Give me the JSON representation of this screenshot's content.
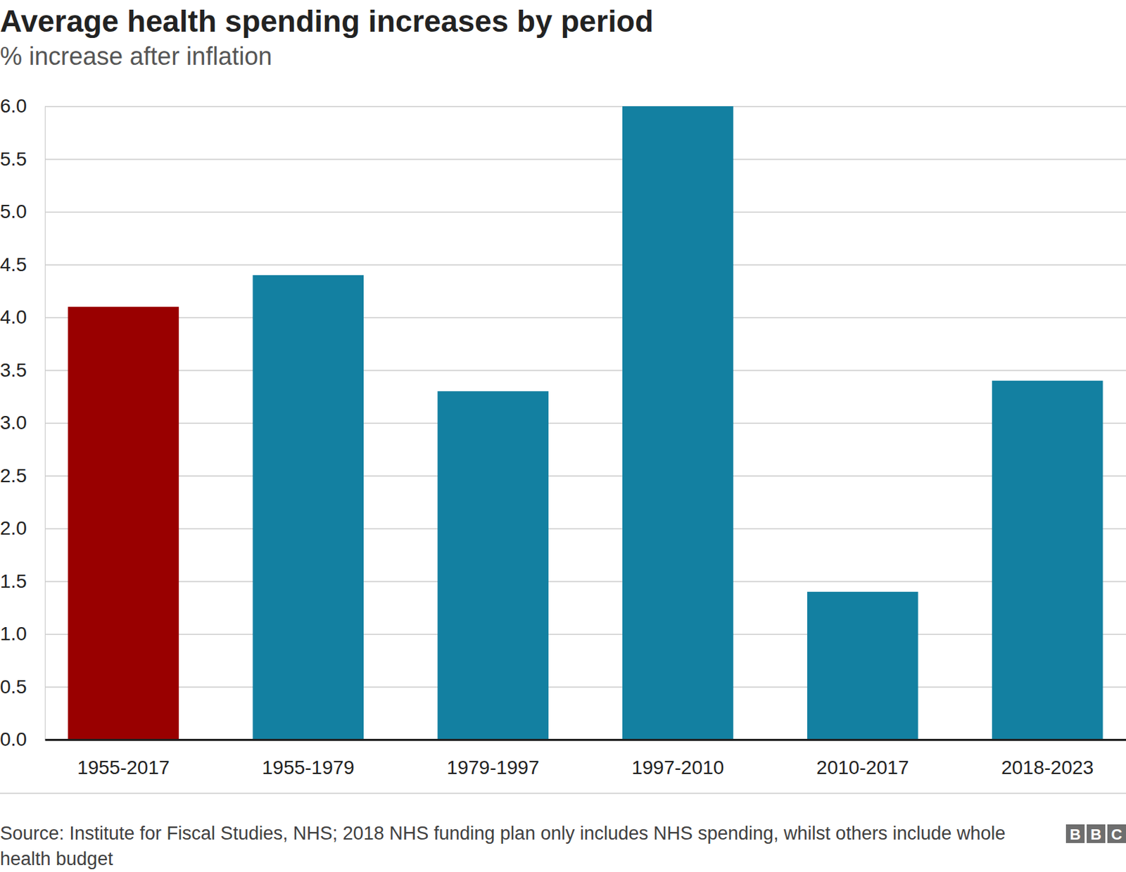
{
  "chart_data": {
    "type": "bar",
    "title": "Average health spending increases by period",
    "subtitle": "% increase after inflation",
    "categories": [
      "1955-2017",
      "1955-1979",
      "1979-1997",
      "1997-2010",
      "2010-2017",
      "2018-2023"
    ],
    "values": [
      4.1,
      4.4,
      3.3,
      6.0,
      1.4,
      3.4
    ],
    "colors": [
      "#990000",
      "#1380a1",
      "#1380a1",
      "#1380a1",
      "#1380a1",
      "#1380a1"
    ],
    "ylim": [
      0,
      6
    ],
    "yticks": [
      {
        "value": 0,
        "label": "0.0"
      },
      0.5,
      {
        "value": 1,
        "label": "1.0"
      },
      1.5,
      {
        "value": 2,
        "label": "2.0"
      },
      2.5,
      {
        "value": 3,
        "label": "3.0"
      },
      3.5,
      {
        "value": 4,
        "label": "4.0"
      },
      4.5,
      {
        "value": 5,
        "label": "5.0"
      },
      5.5,
      {
        "value": 6,
        "label": "6.0"
      }
    ],
    "grid": true,
    "source": "Source: Institute for Fiscal Studies, NHS; 2018 NHS funding plan only includes NHS spending, whilst others include whole health budget",
    "logo": "BBC"
  }
}
